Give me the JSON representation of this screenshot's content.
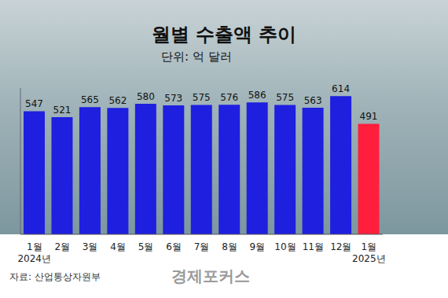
{
  "chart_data": {
    "type": "bar",
    "title": "월별 수출액 추이",
    "subtitle": "단위: 억 달러",
    "source": "자료: 산업통상자원부",
    "watermark": "경제포커스",
    "categories": [
      "1월\n2024년",
      "2월",
      "3월",
      "4월",
      "5월",
      "6월",
      "7월",
      "8월",
      "9월",
      "10월",
      "11월",
      "12월",
      "1월\n2025년"
    ],
    "values": [
      547,
      521,
      565,
      562,
      580,
      573,
      575,
      576,
      586,
      575,
      563,
      614,
      491
    ],
    "colors": [
      "#1f1fe0",
      "#1f1fe0",
      "#1f1fe0",
      "#1f1fe0",
      "#1f1fe0",
      "#1f1fe0",
      "#1f1fe0",
      "#1f1fe0",
      "#1f1fe0",
      "#1f1fe0",
      "#1f1fe0",
      "#1f1fe0",
      "#ff1f3d"
    ],
    "ylim": [
      0,
      650
    ],
    "tick_labels": "x",
    "data_labels": true,
    "grid": false
  }
}
